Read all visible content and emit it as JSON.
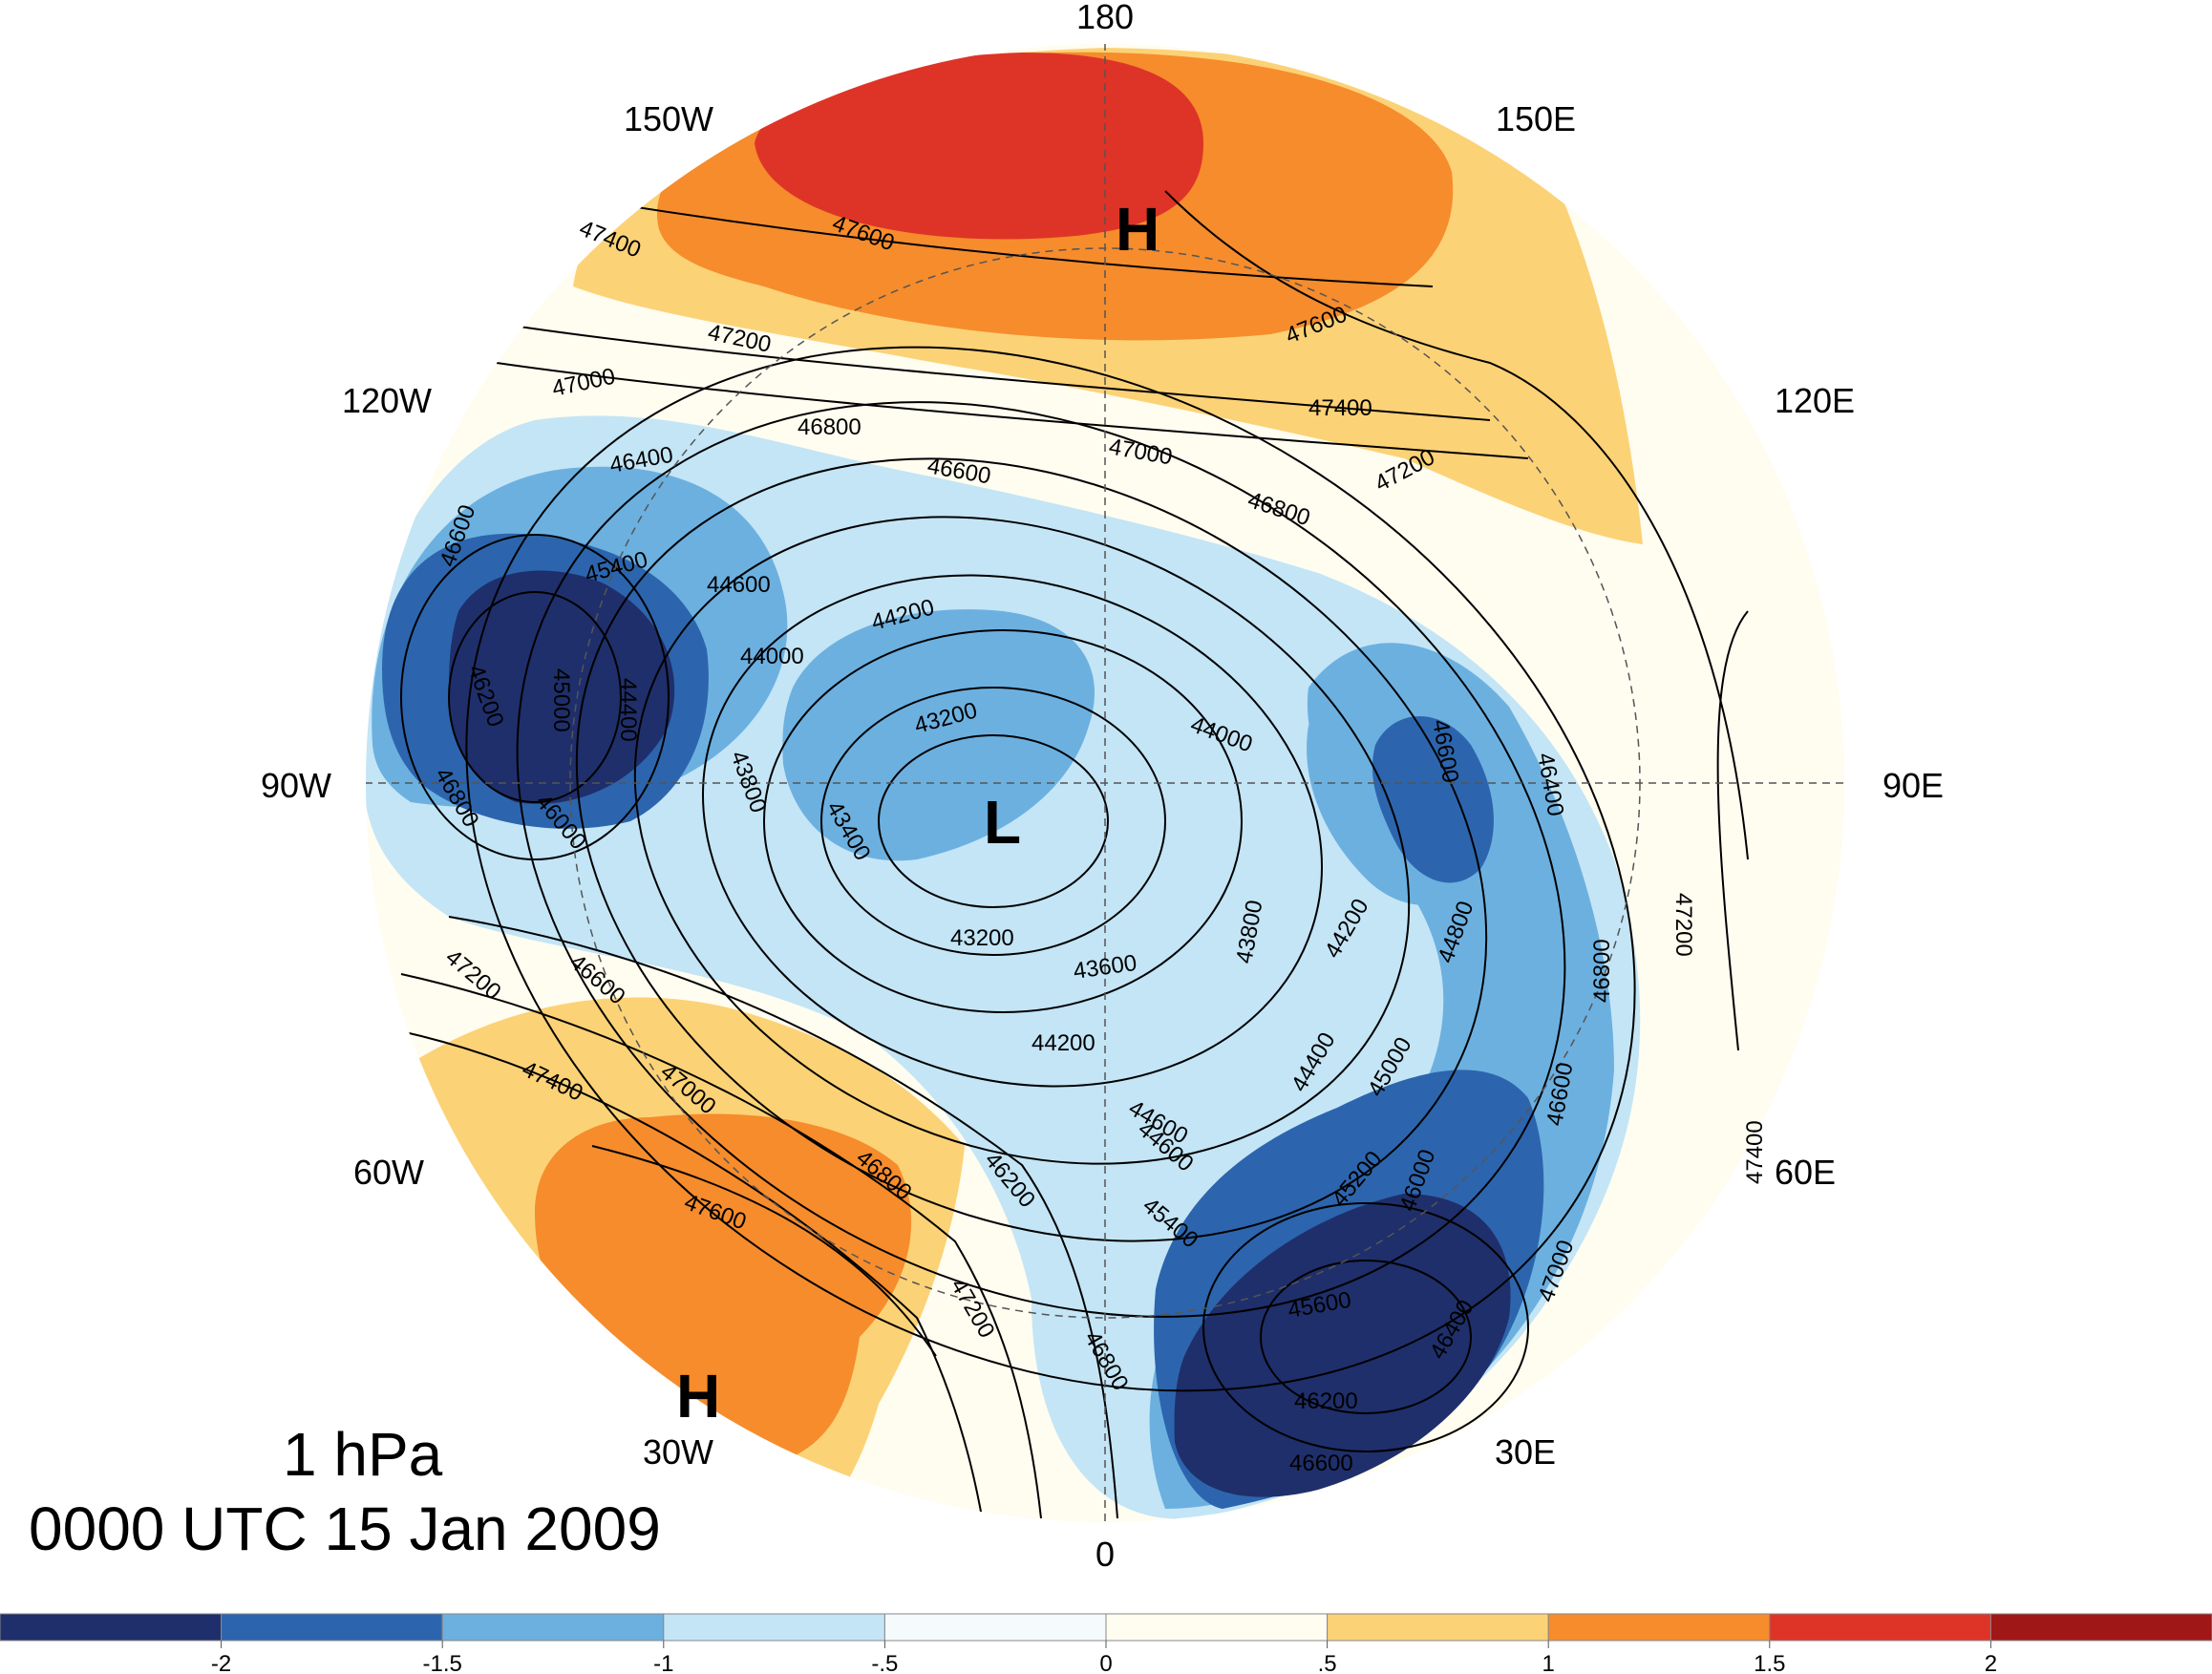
{
  "level": "1 hPa",
  "valid_time": "0000 UTC 15 Jan 2009",
  "longitude_labels": {
    "n180": "180",
    "w150": "150W",
    "e150": "150E",
    "w120": "120W",
    "e120": "120E",
    "w90": "90W",
    "e90": "90E",
    "w60": "60W",
    "e60": "60E",
    "w30": "30W",
    "e30": "30E",
    "s0": "0"
  },
  "centers": [
    {
      "type": "H",
      "label": "H"
    },
    {
      "type": "L",
      "label": "L"
    },
    {
      "type": "H",
      "label": "H"
    }
  ],
  "contour_labels": [
    "47600",
    "47400",
    "47200",
    "47600",
    "47400",
    "47000",
    "46800",
    "46600",
    "47000",
    "46800",
    "47200",
    "46400",
    "46600",
    "45400",
    "44600",
    "44200",
    "44000",
    "46200",
    "45000",
    "44400",
    "43800",
    "43200",
    "43400",
    "46000",
    "46800",
    "43200",
    "43600",
    "44200",
    "44000",
    "44600",
    "46400",
    "43800",
    "44200",
    "44800",
    "46600",
    "44400",
    "45000",
    "46800",
    "47200",
    "46600",
    "47200",
    "47400",
    "47000",
    "46800",
    "46200",
    "45400",
    "44600",
    "45200",
    "46000",
    "45600",
    "46400",
    "47000",
    "46200",
    "47600",
    "47200",
    "46800",
    "46600",
    "46600",
    "47400"
  ],
  "colorbar": {
    "colors": [
      "#1f2f6b",
      "#2c65ad",
      "#6cb0e0",
      "#c3e5f6",
      "#f5fafd",
      "#fffcf0",
      "#fcd276",
      "#f68c2c",
      "#de3427",
      "#9f1717"
    ],
    "tick_labels": [
      "-2",
      "-1.5",
      "-1",
      "-.5",
      "0",
      ".5",
      "1",
      "1.5",
      "2"
    ]
  }
}
